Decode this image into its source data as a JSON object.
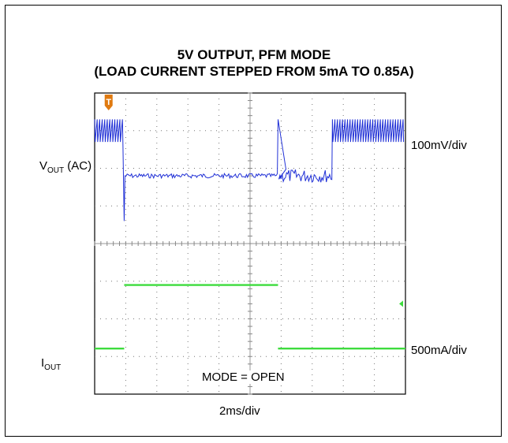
{
  "chart_data": {
    "type": "line",
    "title": "5V OUTPUT, PFM MODE",
    "subtitle": "(LOAD CURRENT STEPPED FROM 5mA TO 0.85A)",
    "xlabel": "2ms/div",
    "annotation": "MODE = OPEN",
    "grid": true,
    "divisions": {
      "x": 10,
      "y": 8
    },
    "x_unit": "div",
    "trigger_marker": "T",
    "channels": [
      {
        "name": "V",
        "name_sub": "OUT",
        "name_suffix": " (AC)",
        "scale": "100mV/div",
        "color": "#1f2fd6",
        "segments": [
          {
            "x_start": 0.0,
            "x_end": 0.95,
            "level_div": 7.0,
            "ripple_div": 0.6,
            "style": "sawtooth"
          },
          {
            "x_start": 0.95,
            "x_end": 5.9,
            "level_div": 5.8,
            "ripple_div": 0.12,
            "style": "noise",
            "dip_div": 4.6
          },
          {
            "x_start": 5.9,
            "x_end": 7.65,
            "level_div": 5.8,
            "ripple_div": 0.35,
            "style": "noise",
            "spike_div": 7.3
          },
          {
            "x_start": 7.65,
            "x_end": 10.0,
            "level_div": 7.0,
            "ripple_div": 0.6,
            "style": "sawtooth"
          }
        ]
      },
      {
        "name": "I",
        "name_sub": "OUT",
        "name_suffix": "",
        "scale": "500mA/div",
        "color": "#3ddc3d",
        "segments": [
          {
            "x_start": 0.0,
            "x_end": 0.95,
            "value": 0.005
          },
          {
            "x_start": 0.95,
            "x_end": 5.9,
            "value": 0.85
          },
          {
            "x_start": 5.9,
            "x_end": 10.0,
            "value": 0.005
          }
        ]
      }
    ]
  }
}
